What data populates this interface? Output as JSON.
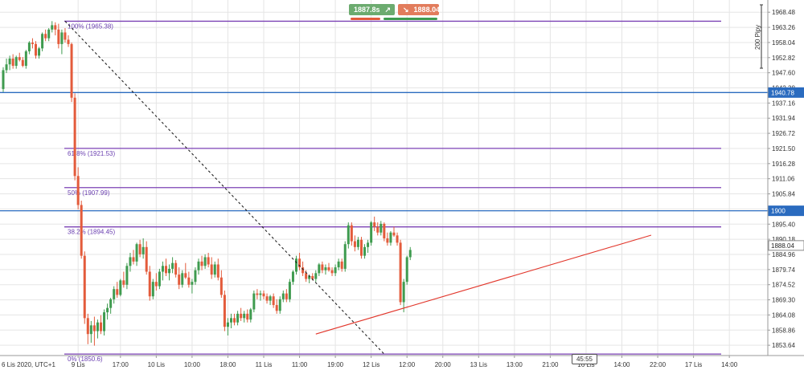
{
  "toolbar": {
    "sell_price": "1887.8s",
    "sell_arrow_icon": "up-right-arrow",
    "buy_price": "1888.04",
    "buy_arrow_icon": "down-right-arrow"
  },
  "axis_caption": "200 Pipy",
  "timer": "45:55",
  "colors": {
    "bull": "#3f9b4f",
    "bear": "#e35b3b",
    "fib": "#7b42b5",
    "horizontal": "#2a6bbf",
    "trendline": "#e2362b",
    "grid": "#e5e5e5"
  },
  "chart_data": {
    "type": "candlestick",
    "ylim": [
      1850,
      1972
    ],
    "y_ticks": [
      1968.48,
      1963.26,
      1958.04,
      1952.82,
      1947.6,
      1942.38,
      1937.16,
      1931.94,
      1926.72,
      1921.5,
      1916.28,
      1911.06,
      1905.84,
      1900.62,
      1895.4,
      1890.18,
      1884.96,
      1879.74,
      1874.52,
      1869.3,
      1864.08,
      1858.86,
      1853.64
    ],
    "y_tick_labels": [
      "1968.48",
      "1963.26",
      "1958.04",
      "1952.82",
      "1947.60",
      "1942.38",
      "1937.16",
      "1931.94",
      "1926.72",
      "1921.50",
      "1916.28",
      "1911.06",
      "1905.84",
      "",
      "1895.40",
      "1890.18",
      "1884.96",
      "1879.74",
      "1874.52",
      "1869.30",
      "1864.08",
      "1858.86",
      "1853.64"
    ],
    "x_labels": [
      "6 Lis 2020, UTC+1",
      "9 Lis",
      "17:00",
      "10 Lis",
      "10:00",
      "18:00",
      "11 Lis",
      "11:00",
      "19:00",
      "12 Lis",
      "12:00",
      "20:00",
      "13 Lis",
      "13:00",
      "21:00",
      "16 Lis",
      "14:00",
      "22:00",
      "17 Lis",
      "14:00"
    ],
    "x_label_slots": [
      0,
      23,
      36,
      47,
      58,
      69,
      80,
      91,
      102,
      113,
      124,
      135,
      146,
      157,
      168,
      179,
      190,
      201,
      212,
      223
    ],
    "price_tags": [
      {
        "name": "level-1940",
        "value": 1940.78,
        "label": "1940.78",
        "color": "#2a6bbf"
      },
      {
        "name": "level-1900",
        "value": 1900,
        "label": "1900",
        "color": "#2a6bbf"
      },
      {
        "name": "current-price",
        "value": 1888.04,
        "label": "1888.04",
        "color": "#ffffff"
      }
    ],
    "fib_levels": [
      {
        "pct": "100%",
        "value": 1965.38,
        "label": "100% (1965.38)"
      },
      {
        "pct": "61.8%",
        "value": 1921.53,
        "label": "61.8% (1921.53)"
      },
      {
        "pct": "50%",
        "value": 1907.99,
        "label": "50% (1907.99)"
      },
      {
        "pct": "38.2%",
        "value": 1894.45,
        "label": "38.2% (1894.45)"
      },
      {
        "pct": "0%",
        "value": 1850.6,
        "label": "0% (1850.6)"
      }
    ],
    "horizontal_lines": [
      1940.78,
      1900
    ],
    "trendlines": [
      {
        "kind": "dashed-diagonal",
        "from_slot": 19,
        "from_value": 1965.38,
        "to_slot": 117,
        "to_value": 1850.6
      },
      {
        "kind": "support-red",
        "from_slot": 96,
        "from_value": 1857.5,
        "to_slot": 199,
        "to_value": 1891.6
      }
    ],
    "candles": [
      [
        1942.0,
        1949.5,
        1941.0,
        1948.5
      ],
      [
        1948.5,
        1952.5,
        1947.5,
        1950.5
      ],
      [
        1950.5,
        1953.5,
        1948.5,
        1952.5
      ],
      [
        1952.5,
        1954.0,
        1949.0,
        1950.0
      ],
      [
        1950.0,
        1953.5,
        1949.0,
        1953.0
      ],
      [
        1953.0,
        1954.5,
        1951.5,
        1952.0
      ],
      [
        1952.0,
        1953.0,
        1949.5,
        1950.0
      ],
      [
        1950.0,
        1955.5,
        1949.0,
        1955.0
      ],
      [
        1955.0,
        1958.5,
        1954.0,
        1958.0
      ],
      [
        1958.0,
        1959.5,
        1956.0,
        1957.5
      ],
      [
        1957.5,
        1958.5,
        1952.5,
        1953.5
      ],
      [
        1953.5,
        1956.5,
        1952.5,
        1956.0
      ],
      [
        1956.0,
        1961.5,
        1955.0,
        1961.0
      ],
      [
        1961.0,
        1962.5,
        1958.5,
        1959.5
      ],
      [
        1959.5,
        1963.0,
        1958.5,
        1962.5
      ],
      [
        1962.5,
        1965.4,
        1961.5,
        1964.0
      ],
      [
        1964.0,
        1965.0,
        1960.5,
        1962.5
      ],
      [
        1962.5,
        1964.5,
        1956.0,
        1957.5
      ],
      [
        1957.5,
        1962.5,
        1954.0,
        1961.5
      ],
      [
        1961.5,
        1963.0,
        1958.0,
        1959.0
      ],
      [
        1959.0,
        1960.5,
        1956.5,
        1957.5
      ],
      [
        1957.5,
        1958.0,
        1937.5,
        1939.0
      ],
      [
        1939.0,
        1940.5,
        1910.5,
        1912.0
      ],
      [
        1912.0,
        1915.0,
        1900.5,
        1902.0
      ],
      [
        1902.0,
        1903.5,
        1883.5,
        1884.5
      ],
      [
        1884.5,
        1886.0,
        1861.0,
        1863.0
      ],
      [
        1863.0,
        1864.5,
        1854.0,
        1857.5
      ],
      [
        1857.5,
        1862.0,
        1854.5,
        1860.5
      ],
      [
        1860.5,
        1863.5,
        1853.5,
        1858.5
      ],
      [
        1858.5,
        1862.5,
        1856.0,
        1861.5
      ],
      [
        1861.5,
        1864.0,
        1857.5,
        1858.5
      ],
      [
        1858.5,
        1866.0,
        1857.0,
        1865.0
      ],
      [
        1865.0,
        1868.0,
        1862.5,
        1866.5
      ],
      [
        1866.5,
        1870.0,
        1864.5,
        1869.5
      ],
      [
        1869.5,
        1874.0,
        1868.0,
        1873.0
      ],
      [
        1873.0,
        1875.5,
        1870.0,
        1871.0
      ],
      [
        1871.0,
        1876.5,
        1870.5,
        1876.0
      ],
      [
        1876.0,
        1879.0,
        1873.5,
        1874.5
      ],
      [
        1874.5,
        1882.0,
        1873.0,
        1881.0
      ],
      [
        1881.0,
        1885.5,
        1879.0,
        1884.0
      ],
      [
        1884.0,
        1886.5,
        1881.5,
        1882.5
      ],
      [
        1882.5,
        1889.0,
        1881.0,
        1888.5
      ],
      [
        1888.5,
        1890.0,
        1884.0,
        1885.0
      ],
      [
        1885.0,
        1890.5,
        1883.5,
        1887.5
      ],
      [
        1887.5,
        1889.5,
        1878.0,
        1879.0
      ],
      [
        1879.0,
        1881.0,
        1869.0,
        1870.5
      ],
      [
        1870.5,
        1876.5,
        1869.5,
        1875.5
      ],
      [
        1875.5,
        1878.5,
        1872.5,
        1874.0
      ],
      [
        1874.0,
        1880.0,
        1873.0,
        1879.0
      ],
      [
        1879.0,
        1882.5,
        1876.0,
        1881.0
      ],
      [
        1881.0,
        1883.5,
        1877.5,
        1878.5
      ],
      [
        1878.5,
        1881.5,
        1876.0,
        1880.0
      ],
      [
        1880.0,
        1884.0,
        1878.5,
        1882.0
      ],
      [
        1882.0,
        1883.0,
        1877.0,
        1878.0
      ],
      [
        1878.0,
        1880.5,
        1873.0,
        1874.5
      ],
      [
        1874.5,
        1879.5,
        1873.5,
        1878.5
      ],
      [
        1878.5,
        1882.0,
        1876.5,
        1877.0
      ],
      [
        1877.0,
        1879.0,
        1873.5,
        1874.5
      ],
      [
        1874.5,
        1876.5,
        1871.5,
        1875.5
      ],
      [
        1875.5,
        1880.5,
        1874.5,
        1879.5
      ],
      [
        1879.5,
        1883.5,
        1878.0,
        1882.5
      ],
      [
        1882.5,
        1884.5,
        1879.5,
        1881.0
      ],
      [
        1881.0,
        1885.0,
        1880.0,
        1884.0
      ],
      [
        1884.0,
        1885.5,
        1880.5,
        1881.5
      ],
      [
        1881.5,
        1884.0,
        1876.5,
        1878.0
      ],
      [
        1878.0,
        1882.5,
        1877.0,
        1881.5
      ],
      [
        1881.5,
        1883.5,
        1876.0,
        1877.0
      ],
      [
        1877.0,
        1879.5,
        1870.0,
        1871.0
      ],
      [
        1871.0,
        1872.5,
        1858.5,
        1860.0
      ],
      [
        1860.0,
        1863.0,
        1857.0,
        1861.5
      ],
      [
        1861.5,
        1864.5,
        1859.5,
        1863.0
      ],
      [
        1863.0,
        1864.5,
        1860.5,
        1861.5
      ],
      [
        1861.5,
        1865.5,
        1860.5,
        1864.5
      ],
      [
        1864.5,
        1866.5,
        1862.0,
        1863.0
      ],
      [
        1863.0,
        1865.5,
        1861.5,
        1864.5
      ],
      [
        1864.5,
        1866.0,
        1861.5,
        1862.5
      ],
      [
        1862.5,
        1866.5,
        1861.5,
        1866.0
      ],
      [
        1866.0,
        1872.5,
        1865.0,
        1871.5
      ],
      [
        1871.5,
        1873.0,
        1869.5,
        1871.0
      ],
      [
        1871.0,
        1872.5,
        1869.0,
        1871.5
      ],
      [
        1871.5,
        1872.5,
        1869.5,
        1870.5
      ],
      [
        1870.5,
        1871.5,
        1868.0,
        1869.0
      ],
      [
        1869.0,
        1871.0,
        1867.5,
        1870.5
      ],
      [
        1870.5,
        1871.5,
        1866.5,
        1867.5
      ],
      [
        1867.5,
        1869.5,
        1864.5,
        1865.5
      ],
      [
        1865.5,
        1870.5,
        1864.5,
        1869.5
      ],
      [
        1869.5,
        1872.5,
        1868.5,
        1871.5
      ],
      [
        1871.5,
        1873.0,
        1868.5,
        1869.5
      ],
      [
        1869.5,
        1876.5,
        1868.5,
        1875.5
      ],
      [
        1875.5,
        1879.5,
        1874.5,
        1879.0
      ],
      [
        1879.0,
        1884.5,
        1878.0,
        1883.5
      ],
      [
        1883.5,
        1885.5,
        1879.5,
        1880.5
      ],
      [
        1880.5,
        1882.5,
        1877.5,
        1878.5
      ],
      [
        1878.5,
        1879.5,
        1875.5,
        1876.5
      ],
      [
        1876.5,
        1878.0,
        1875.0,
        1877.5
      ],
      [
        1877.5,
        1878.5,
        1876.0,
        1876.5
      ],
      [
        1876.5,
        1879.5,
        1875.5,
        1878.5
      ],
      [
        1878.5,
        1882.0,
        1877.5,
        1881.5
      ],
      [
        1881.5,
        1882.5,
        1878.5,
        1879.5
      ],
      [
        1879.5,
        1881.5,
        1878.0,
        1880.5
      ],
      [
        1880.5,
        1882.0,
        1879.0,
        1879.5
      ],
      [
        1879.5,
        1880.5,
        1877.5,
        1878.5
      ],
      [
        1878.5,
        1881.5,
        1877.5,
        1880.5
      ],
      [
        1880.5,
        1883.5,
        1879.5,
        1882.5
      ],
      [
        1882.5,
        1883.5,
        1879.0,
        1880.0
      ],
      [
        1880.0,
        1889.5,
        1879.0,
        1888.5
      ],
      [
        1888.5,
        1896.0,
        1887.0,
        1895.0
      ],
      [
        1895.0,
        1896.0,
        1888.0,
        1889.5
      ],
      [
        1889.5,
        1891.5,
        1886.0,
        1887.5
      ],
      [
        1887.5,
        1891.0,
        1886.5,
        1890.0
      ],
      [
        1890.0,
        1891.0,
        1883.5,
        1884.5
      ],
      [
        1884.5,
        1888.5,
        1883.5,
        1887.5
      ],
      [
        1887.5,
        1890.0,
        1885.5,
        1889.0
      ],
      [
        1889.0,
        1896.5,
        1888.0,
        1896.0
      ],
      [
        1896.0,
        1898.0,
        1893.0,
        1894.5
      ],
      [
        1894.5,
        1896.0,
        1891.5,
        1892.5
      ],
      [
        1892.5,
        1896.5,
        1891.5,
        1895.5
      ],
      [
        1895.5,
        1896.0,
        1889.5,
        1890.5
      ],
      [
        1890.5,
        1892.5,
        1888.0,
        1889.0
      ],
      [
        1889.0,
        1893.0,
        1888.0,
        1892.5
      ],
      [
        1892.5,
        1894.5,
        1891.0,
        1891.5
      ],
      [
        1891.5,
        1892.5,
        1888.0,
        1889.0
      ],
      [
        1889.0,
        1890.0,
        1867.5,
        1868.5
      ],
      [
        1868.5,
        1876.5,
        1865.0,
        1875.5
      ],
      [
        1875.5,
        1884.5,
        1874.5,
        1884.0
      ],
      [
        1884.0,
        1887.5,
        1883.0,
        1886.5
      ]
    ]
  }
}
